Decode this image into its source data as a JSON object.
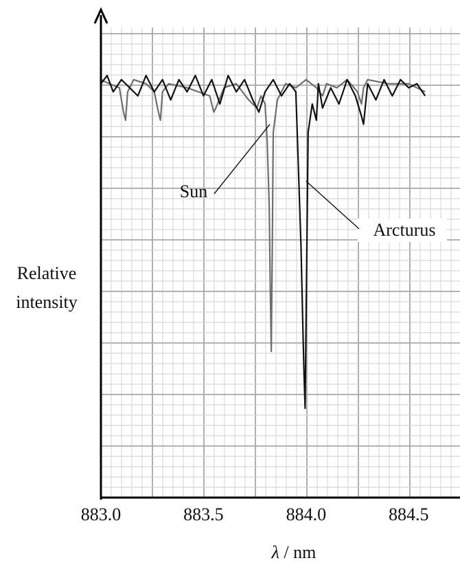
{
  "chart_data": {
    "type": "line",
    "title": "",
    "xlabel_symbol": "λ",
    "xlabel_unit": " / nm",
    "ylabel_lines": [
      "Relative",
      "intensity"
    ],
    "x_tick_labels": [
      "883.0",
      "883.5",
      "884.0",
      "884.5"
    ],
    "x_ticks": [
      883.0,
      883.5,
      884.0,
      884.5
    ],
    "xlim": [
      883.0,
      884.75
    ],
    "ylim": [
      0.0,
      1.15
    ],
    "grid": true,
    "colors": {
      "sun": "#6e6e6e",
      "arcturus": "#111111",
      "grid_minor": "#cfcfcf",
      "grid_major": "#a8a8a8",
      "axis": "#000000"
    },
    "annotations": [
      {
        "text": "Sun",
        "series": "Sun",
        "x": 883.83,
        "y": 0.92
      },
      {
        "text": "Arcturus",
        "series": "Arcturus",
        "x": 884.0,
        "y": 0.78
      }
    ],
    "series": [
      {
        "name": "Sun",
        "x": [
          883.0,
          883.04,
          883.09,
          883.11,
          883.12,
          883.13,
          883.16,
          883.22,
          883.26,
          883.28,
          883.29,
          883.3,
          883.33,
          883.42,
          883.53,
          883.55,
          883.56,
          883.6,
          883.66,
          883.72,
          883.76,
          883.78,
          883.8,
          883.81,
          883.82,
          883.825,
          883.83,
          883.835,
          883.84,
          883.86,
          883.9,
          883.95,
          884.0,
          884.05,
          884.08,
          884.1,
          884.15,
          884.2,
          884.25,
          884.27,
          884.28,
          884.3,
          884.4,
          884.5,
          884.58
        ],
        "y": [
          1.03,
          1.02,
          1.01,
          0.95,
          0.93,
          1.0,
          1.03,
          1.02,
          1.0,
          0.95,
          0.93,
          1.0,
          1.02,
          1.01,
          0.99,
          0.95,
          0.96,
          1.01,
          1.02,
          0.98,
          0.96,
          0.99,
          0.97,
          0.88,
          0.72,
          0.52,
          0.36,
          0.6,
          0.9,
          0.98,
          1.02,
          1.01,
          1.03,
          1.01,
          0.99,
          1.02,
          1.01,
          1.03,
          1.0,
          0.97,
          1.01,
          1.03,
          1.02,
          1.02,
          1.0
        ],
        "color": "#6e6e6e"
      },
      {
        "name": "Arcturus",
        "x": [
          883.0,
          883.03,
          883.06,
          883.1,
          883.14,
          883.18,
          883.22,
          883.26,
          883.3,
          883.34,
          883.38,
          883.42,
          883.46,
          883.5,
          883.54,
          883.58,
          883.62,
          883.66,
          883.7,
          883.74,
          883.77,
          883.8,
          883.84,
          883.88,
          883.92,
          883.95,
          883.96,
          883.975,
          883.985,
          883.99,
          883.995,
          884.0,
          884.01,
          884.03,
          884.05,
          884.06,
          884.08,
          884.12,
          884.16,
          884.2,
          884.24,
          884.27,
          884.28,
          884.3,
          884.34,
          884.38,
          884.42,
          884.46,
          884.5,
          884.54,
          884.58
        ],
        "y": [
          1.02,
          1.04,
          1.0,
          1.03,
          1.01,
          0.99,
          1.04,
          1.0,
          1.03,
          0.98,
          1.03,
          1.0,
          1.04,
          0.99,
          1.03,
          0.97,
          1.04,
          1.0,
          1.03,
          0.98,
          0.95,
          1.0,
          1.03,
          0.99,
          1.02,
          1.0,
          0.85,
          0.62,
          0.4,
          0.3,
          0.22,
          0.45,
          0.9,
          0.97,
          0.93,
          1.02,
          0.96,
          1.01,
          0.97,
          1.03,
          0.99,
          0.94,
          0.92,
          1.02,
          0.98,
          1.03,
          0.99,
          1.03,
          1.01,
          1.02,
          0.99
        ],
        "color": "#111111"
      }
    ]
  }
}
